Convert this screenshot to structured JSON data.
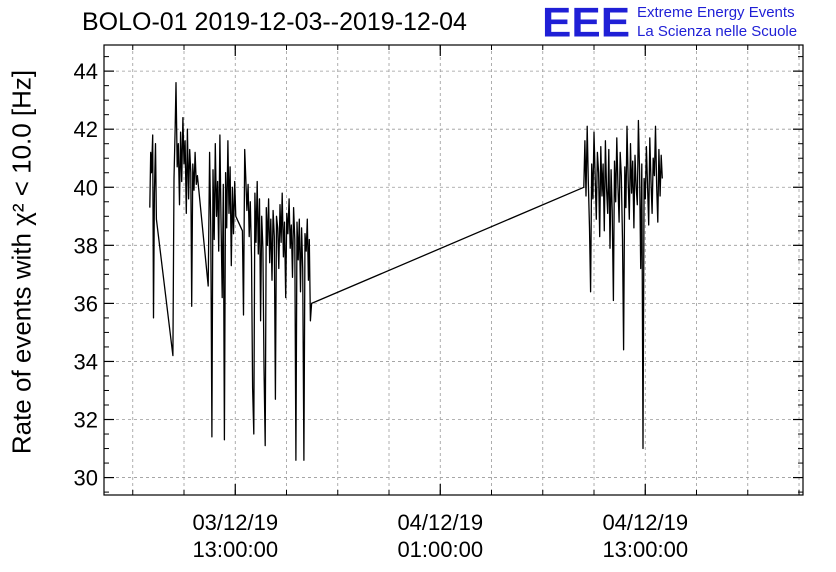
{
  "header": {
    "title": "BOLO-01 2019-12-03--2019-12-04",
    "logo_text": "EEE",
    "brand_line1": "Extreme Energy Events",
    "brand_line2": "La Scienza nelle Scuole"
  },
  "colors": {
    "brand": "#1f1fd6",
    "line": "#000000",
    "grid": "#9a9a9a"
  },
  "chart_data": {
    "type": "line",
    "title": "BOLO-01 2019-12-03--2019-12-04",
    "ylabel": "Rate of events with χ² < 10.0 [Hz]",
    "xlabel": "",
    "ylim": [
      29.4,
      44.9
    ],
    "xlim": [
      "2019-12-03T05:19:00",
      "2019-12-04T22:14:00"
    ],
    "x_ticks": [
      {
        "at": "2019-12-03T13:00:00",
        "line1": "03/12/19",
        "line2": "13:00:00"
      },
      {
        "at": "2019-12-04T01:00:00",
        "line1": "04/12/19",
        "line2": "01:00:00"
      },
      {
        "at": "2019-12-04T13:00:00",
        "line1": "04/12/19",
        "line2": "13:00:00"
      }
    ],
    "y_ticks": [
      30,
      32,
      34,
      36,
      38,
      40,
      42,
      44
    ],
    "grid": true,
    "series": [
      {
        "points": [
          [
            "2019-12-03T08:00:00",
            39.3
          ],
          [
            "2019-12-03T08:03:00",
            41.2
          ],
          [
            "2019-12-03T08:06:00",
            40.5
          ],
          [
            "2019-12-03T08:10:00",
            41.8
          ],
          [
            "2019-12-03T08:13:00",
            35.5
          ],
          [
            "2019-12-03T08:16:00",
            39.8
          ],
          [
            "2019-12-03T08:20:00",
            41.5
          ],
          [
            "2019-12-03T08:23:00",
            38.9
          ],
          [
            "2019-12-03T09:21:00",
            34.2
          ],
          [
            "2019-12-03T09:25:00",
            40.3
          ],
          [
            "2019-12-03T09:29:00",
            42.1
          ],
          [
            "2019-12-03T09:32:00",
            43.6
          ],
          [
            "2019-12-03T09:36:00",
            40.7
          ],
          [
            "2019-12-03T09:40:00",
            41.5
          ],
          [
            "2019-12-03T09:44:00",
            39.4
          ],
          [
            "2019-12-03T09:48:00",
            41.9
          ],
          [
            "2019-12-03T09:52:00",
            40.2
          ],
          [
            "2019-12-03T09:56:00",
            42.4
          ],
          [
            "2019-12-03T10:00:00",
            40.8
          ],
          [
            "2019-12-03T10:04:00",
            41.6
          ],
          [
            "2019-12-03T10:08:00",
            39.1
          ],
          [
            "2019-12-03T10:12:00",
            42.0
          ],
          [
            "2019-12-03T10:16:00",
            39.6
          ],
          [
            "2019-12-03T10:20:00",
            41.3
          ],
          [
            "2019-12-03T10:24:00",
            40.5
          ],
          [
            "2019-12-03T10:27:00",
            35.9
          ],
          [
            "2019-12-03T10:31:00",
            40.8
          ],
          [
            "2019-12-03T10:35:00",
            39.9
          ],
          [
            "2019-12-03T10:39:00",
            41.2
          ],
          [
            "2019-12-03T10:43:00",
            40.1
          ],
          [
            "2019-12-03T10:47:00",
            40.4
          ],
          [
            "2019-12-03T11:25:00",
            36.6
          ],
          [
            "2019-12-03T11:30:00",
            41.2
          ],
          [
            "2019-12-03T11:34:00",
            38.5
          ],
          [
            "2019-12-03T11:38:00",
            31.4
          ],
          [
            "2019-12-03T11:42:00",
            40.6
          ],
          [
            "2019-12-03T11:46:00",
            38.2
          ],
          [
            "2019-12-03T11:50:00",
            41.5
          ],
          [
            "2019-12-03T11:54:00",
            39.0
          ],
          [
            "2019-12-03T11:58:00",
            40.2
          ],
          [
            "2019-12-03T12:02:00",
            37.8
          ],
          [
            "2019-12-03T12:06:00",
            41.8
          ],
          [
            "2019-12-03T12:10:00",
            38.9
          ],
          [
            "2019-12-03T12:14:00",
            36.2
          ],
          [
            "2019-12-03T12:18:00",
            40.1
          ],
          [
            "2019-12-03T12:22:00",
            31.3
          ],
          [
            "2019-12-03T12:26:00",
            40.5
          ],
          [
            "2019-12-03T12:30:00",
            38.6
          ],
          [
            "2019-12-03T12:34:00",
            41.6
          ],
          [
            "2019-12-03T12:38:00",
            39.1
          ],
          [
            "2019-12-03T12:42:00",
            40.7
          ],
          [
            "2019-12-03T12:46:00",
            37.3
          ],
          [
            "2019-12-03T12:50:00",
            40.0
          ],
          [
            "2019-12-03T12:54:00",
            38.4
          ],
          [
            "2019-12-03T12:58:00",
            40.2
          ],
          [
            "2019-12-03T13:02:00",
            39.0
          ],
          [
            "2019-12-03T13:25:00",
            38.5
          ],
          [
            "2019-12-03T13:29:00",
            35.6
          ],
          [
            "2019-12-03T13:33:00",
            41.3
          ],
          [
            "2019-12-03T13:37:00",
            40.3
          ],
          [
            "2019-12-03T13:41:00",
            39.2
          ],
          [
            "2019-12-03T13:45:00",
            40.1
          ],
          [
            "2019-12-03T13:49:00",
            38.3
          ],
          [
            "2019-12-03T13:53:00",
            39.5
          ],
          [
            "2019-12-03T13:57:00",
            37.6
          ],
          [
            "2019-12-03T14:01:00",
            33.1
          ],
          [
            "2019-12-03T14:05:00",
            31.5
          ],
          [
            "2019-12-03T14:09:00",
            39.8
          ],
          [
            "2019-12-03T14:13:00",
            38.1
          ],
          [
            "2019-12-03T14:17:00",
            40.2
          ],
          [
            "2019-12-03T14:21:00",
            37.7
          ],
          [
            "2019-12-03T14:25:00",
            39.6
          ],
          [
            "2019-12-03T14:29:00",
            35.4
          ],
          [
            "2019-12-03T14:33:00",
            39.0
          ],
          [
            "2019-12-03T14:37:00",
            37.9
          ],
          [
            "2019-12-03T14:41:00",
            33.8
          ],
          [
            "2019-12-03T14:45:00",
            31.1
          ],
          [
            "2019-12-03T14:49:00",
            39.3
          ],
          [
            "2019-12-03T14:53:00",
            38.0
          ],
          [
            "2019-12-03T14:57:00",
            39.6
          ],
          [
            "2019-12-03T15:01:00",
            37.4
          ],
          [
            "2019-12-03T15:05:00",
            38.9
          ],
          [
            "2019-12-03T15:09:00",
            36.8
          ],
          [
            "2019-12-03T15:13:00",
            39.2
          ],
          [
            "2019-12-03T15:17:00",
            38.3
          ],
          [
            "2019-12-03T15:21:00",
            32.7
          ],
          [
            "2019-12-03T15:25:00",
            39.0
          ],
          [
            "2019-12-03T15:29:00",
            38.6
          ],
          [
            "2019-12-03T15:33:00",
            37.2
          ],
          [
            "2019-12-03T15:37:00",
            39.4
          ],
          [
            "2019-12-03T15:41:00",
            38.1
          ],
          [
            "2019-12-03T15:45:00",
            39.8
          ],
          [
            "2019-12-03T15:49:00",
            37.6
          ],
          [
            "2019-12-03T15:53:00",
            38.8
          ],
          [
            "2019-12-03T15:57:00",
            36.2
          ],
          [
            "2019-12-03T16:01:00",
            39.1
          ],
          [
            "2019-12-03T16:05:00",
            38.4
          ],
          [
            "2019-12-03T16:09:00",
            39.6
          ],
          [
            "2019-12-03T16:13:00",
            37.9
          ],
          [
            "2019-12-03T16:17:00",
            38.7
          ],
          [
            "2019-12-03T16:21:00",
            36.9
          ],
          [
            "2019-12-03T16:25:00",
            39.3
          ],
          [
            "2019-12-03T16:29:00",
            38.2
          ],
          [
            "2019-12-03T16:33:00",
            30.6
          ],
          [
            "2019-12-03T16:37:00",
            38.8
          ],
          [
            "2019-12-03T16:41:00",
            37.5
          ],
          [
            "2019-12-03T16:45:00",
            38.9
          ],
          [
            "2019-12-03T16:49:00",
            36.4
          ],
          [
            "2019-12-03T16:53:00",
            38.6
          ],
          [
            "2019-12-03T16:57:00",
            37.2
          ],
          [
            "2019-12-03T17:01:00",
            30.6
          ],
          [
            "2019-12-03T17:05:00",
            38.4
          ],
          [
            "2019-12-03T17:09:00",
            37.8
          ],
          [
            "2019-12-03T17:13:00",
            38.9
          ],
          [
            "2019-12-03T17:17:00",
            36.8
          ],
          [
            "2019-12-03T17:20:00",
            38.2
          ],
          [
            "2019-12-03T17:24:00",
            35.4
          ],
          [
            "2019-12-03T17:28:00",
            36.0
          ],
          [
            "2019-12-04T09:24:00",
            40.0
          ],
          [
            "2019-12-04T09:28:00",
            41.6
          ],
          [
            "2019-12-04T09:32:00",
            39.7
          ],
          [
            "2019-12-04T09:36:00",
            42.1
          ],
          [
            "2019-12-04T09:40:00",
            40.2
          ],
          [
            "2019-12-04T09:44:00",
            38.6
          ],
          [
            "2019-12-04T09:48:00",
            36.4
          ],
          [
            "2019-12-04T09:52:00",
            40.8
          ],
          [
            "2019-12-04T09:56:00",
            39.6
          ],
          [
            "2019-12-04T10:00:00",
            41.9
          ],
          [
            "2019-12-04T10:04:00",
            40.3
          ],
          [
            "2019-12-04T10:08:00",
            38.9
          ],
          [
            "2019-12-04T10:12:00",
            41.2
          ],
          [
            "2019-12-04T10:16:00",
            40.5
          ],
          [
            "2019-12-04T10:20:00",
            38.3
          ],
          [
            "2019-12-04T10:24:00",
            41.4
          ],
          [
            "2019-12-04T10:28:00",
            39.7
          ],
          [
            "2019-12-04T10:32:00",
            40.8
          ],
          [
            "2019-12-04T10:36:00",
            38.5
          ],
          [
            "2019-12-04T10:40:00",
            41.6
          ],
          [
            "2019-12-04T10:44:00",
            40.0
          ],
          [
            "2019-12-04T10:48:00",
            39.1
          ],
          [
            "2019-12-04T10:52:00",
            41.3
          ],
          [
            "2019-12-04T10:56:00",
            37.9
          ],
          [
            "2019-12-04T11:00:00",
            40.6
          ],
          [
            "2019-12-04T11:04:00",
            39.2
          ],
          [
            "2019-12-04T11:08:00",
            36.1
          ],
          [
            "2019-12-04T11:12:00",
            40.9
          ],
          [
            "2019-12-04T11:16:00",
            39.5
          ],
          [
            "2019-12-04T11:20:00",
            41.7
          ],
          [
            "2019-12-04T11:24:00",
            40.1
          ],
          [
            "2019-12-04T11:28:00",
            38.8
          ],
          [
            "2019-12-04T11:32:00",
            41.2
          ],
          [
            "2019-12-04T11:36:00",
            40.4
          ],
          [
            "2019-12-04T11:40:00",
            38.2
          ],
          [
            "2019-12-04T11:44:00",
            34.4
          ],
          [
            "2019-12-04T11:48:00",
            40.7
          ],
          [
            "2019-12-04T11:52:00",
            39.3
          ],
          [
            "2019-12-04T11:56:00",
            42.1
          ],
          [
            "2019-12-04T12:00:00",
            40.2
          ],
          [
            "2019-12-04T12:04:00",
            38.9
          ],
          [
            "2019-12-04T12:08:00",
            41.5
          ],
          [
            "2019-12-04T12:12:00",
            39.8
          ],
          [
            "2019-12-04T12:16:00",
            40.9
          ],
          [
            "2019-12-04T12:20:00",
            38.6
          ],
          [
            "2019-12-04T12:24:00",
            41.1
          ],
          [
            "2019-12-04T12:28:00",
            40.0
          ],
          [
            "2019-12-04T12:32:00",
            39.4
          ],
          [
            "2019-12-04T12:36:00",
            42.3
          ],
          [
            "2019-12-04T12:40:00",
            40.5
          ],
          [
            "2019-12-04T12:44:00",
            37.2
          ],
          [
            "2019-12-04T12:48:00",
            40.8
          ],
          [
            "2019-12-04T12:52:00",
            31.0
          ],
          [
            "2019-12-04T12:56:00",
            40.3
          ],
          [
            "2019-12-04T13:00:00",
            39.6
          ],
          [
            "2019-12-04T13:04:00",
            41.4
          ],
          [
            "2019-12-04T13:08:00",
            40.1
          ],
          [
            "2019-12-04T13:12:00",
            38.7
          ],
          [
            "2019-12-04T13:16:00",
            41.7
          ],
          [
            "2019-12-04T13:20:00",
            40.2
          ],
          [
            "2019-12-04T13:24:00",
            39.1
          ],
          [
            "2019-12-04T13:28:00",
            41.0
          ],
          [
            "2019-12-04T13:32:00",
            40.4
          ],
          [
            "2019-12-04T13:36:00",
            42.1
          ],
          [
            "2019-12-04T13:40:00",
            40.0
          ],
          [
            "2019-12-04T13:44:00",
            38.8
          ],
          [
            "2019-12-04T13:48:00",
            41.3
          ],
          [
            "2019-12-04T13:52:00",
            39.7
          ],
          [
            "2019-12-04T13:56:00",
            41.1
          ],
          [
            "2019-12-04T14:00:00",
            40.3
          ]
        ]
      }
    ]
  }
}
